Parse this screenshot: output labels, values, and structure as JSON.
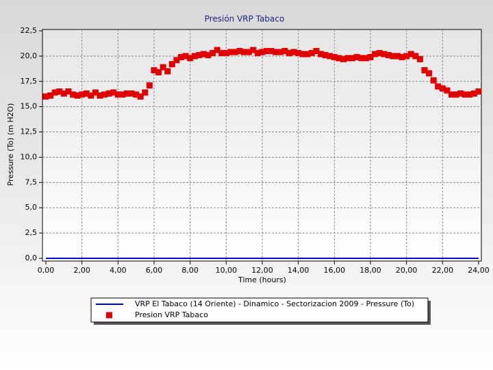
{
  "chart_data": {
    "type": "scatter",
    "title": "Presión VRP Tabaco",
    "x_label": "Time (hours)",
    "y_label": "Pressure (To) (m H2O)",
    "xlim": [
      0,
      24
    ],
    "ylim": [
      0,
      22.5
    ],
    "xticks": [
      {
        "value": 0,
        "label": "0,00"
      },
      {
        "value": 2,
        "label": "2,00"
      },
      {
        "value": 4,
        "label": "4,00"
      },
      {
        "value": 6,
        "label": "6,00"
      },
      {
        "value": 8,
        "label": "8,00"
      },
      {
        "value": 10,
        "label": "10,00"
      },
      {
        "value": 12,
        "label": "12,00"
      },
      {
        "value": 14,
        "label": "14,00"
      },
      {
        "value": 16,
        "label": "16,00"
      },
      {
        "value": 18,
        "label": "18,00"
      },
      {
        "value": 20,
        "label": "20,00"
      },
      {
        "value": 22,
        "label": "22,00"
      },
      {
        "value": 24,
        "label": "24,00"
      }
    ],
    "yticks": [
      {
        "value": 0,
        "label": "0,0"
      },
      {
        "value": 2.5,
        "label": "2,5"
      },
      {
        "value": 5,
        "label": "5,0"
      },
      {
        "value": 7.5,
        "label": "7,5"
      },
      {
        "value": 10,
        "label": "10,0"
      },
      {
        "value": 12.5,
        "label": "12,5"
      },
      {
        "value": 15,
        "label": "15,0"
      },
      {
        "value": 17.5,
        "label": "17,5"
      },
      {
        "value": 20,
        "label": "20,0"
      },
      {
        "value": 22.5,
        "label": "22,5"
      }
    ],
    "grid": true,
    "series": [
      {
        "name": "VRP El Tabaco (14 Oriente) - Dinamico - Sectorizacion 2009 - Pressure (To)",
        "type": "line",
        "color": "#0000cc",
        "x": [
          0,
          24
        ],
        "values": [
          0,
          0
        ]
      },
      {
        "name": "Presion VRP Tabaco",
        "type": "scatter",
        "color": "#e00000",
        "x": [
          0,
          0.25,
          0.5,
          0.75,
          1,
          1.25,
          1.5,
          1.75,
          2,
          2.25,
          2.5,
          2.75,
          3,
          3.25,
          3.5,
          3.75,
          4,
          4.25,
          4.5,
          4.75,
          5,
          5.25,
          5.5,
          5.75,
          6,
          6.25,
          6.5,
          6.75,
          7,
          7.25,
          7.5,
          7.75,
          8,
          8.25,
          8.5,
          8.75,
          9,
          9.25,
          9.5,
          9.75,
          10,
          10.25,
          10.5,
          10.75,
          11,
          11.25,
          11.5,
          11.75,
          12,
          12.25,
          12.5,
          12.75,
          13,
          13.25,
          13.5,
          13.75,
          14,
          14.25,
          14.5,
          14.75,
          15,
          15.25,
          15.5,
          15.75,
          16,
          16.25,
          16.5,
          16.75,
          17,
          17.25,
          17.5,
          17.75,
          18,
          18.25,
          18.5,
          18.75,
          19,
          19.25,
          19.5,
          19.75,
          20,
          20.25,
          20.5,
          20.75,
          21,
          21.25,
          21.5,
          21.75,
          22,
          22.25,
          22.5,
          22.75,
          23,
          23.25,
          23.5,
          23.75,
          24
        ],
        "values": [
          16.0,
          16.1,
          16.4,
          16.5,
          16.3,
          16.5,
          16.2,
          16.1,
          16.2,
          16.3,
          16.1,
          16.4,
          16.1,
          16.2,
          16.3,
          16.4,
          16.2,
          16.2,
          16.3,
          16.3,
          16.2,
          16.0,
          16.4,
          17.1,
          18.6,
          18.4,
          18.9,
          18.5,
          19.2,
          19.6,
          19.9,
          20.0,
          19.8,
          20.0,
          20.1,
          20.2,
          20.1,
          20.3,
          20.6,
          20.3,
          20.3,
          20.4,
          20.4,
          20.5,
          20.4,
          20.4,
          20.6,
          20.3,
          20.4,
          20.5,
          20.5,
          20.4,
          20.4,
          20.5,
          20.3,
          20.4,
          20.3,
          20.2,
          20.2,
          20.3,
          20.5,
          20.2,
          20.1,
          20.0,
          19.9,
          19.8,
          19.7,
          19.8,
          19.8,
          19.9,
          19.8,
          19.8,
          19.9,
          20.2,
          20.3,
          20.2,
          20.1,
          20.0,
          20.0,
          19.9,
          20.0,
          20.2,
          20.0,
          19.7,
          18.6,
          18.3,
          17.6,
          17.0,
          16.8,
          16.6,
          16.2,
          16.2,
          16.3,
          16.2,
          16.2,
          16.3,
          16.5
        ]
      }
    ]
  }
}
